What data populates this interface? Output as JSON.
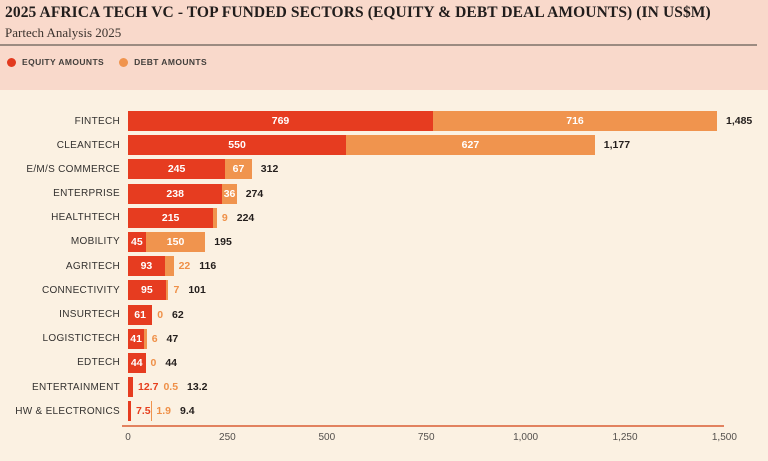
{
  "header": {
    "title": "2025 AFRICA TECH VC - TOP FUNDED SECTORS (EQUITY & DEBT DEAL AMOUNTS) (IN US$M)",
    "subtitle": "Partech Analysis 2025"
  },
  "legend": {
    "items": [
      {
        "label": "EQUITY AMOUNTS",
        "color": "#e23a1f"
      },
      {
        "label": "DEBT AMOUNTS",
        "color": "#f0944e"
      }
    ]
  },
  "colors": {
    "header_background": "#f9d9cb",
    "panel_background": "#fbf1e2",
    "equity_bar": "#e63c20",
    "debt_bar": "#f0944e",
    "equity_outside_text": "#e6401f",
    "debt_outside_text": "#ef9048",
    "total_text": "#241f1d",
    "axis_line": "#e2825f"
  },
  "chart_data": {
    "type": "bar",
    "orientation": "horizontal",
    "stacked": true,
    "title": "2025 AFRICA TECH VC - TOP FUNDED SECTORS (EQUITY & DEBT DEAL AMOUNTS) (IN US$M)",
    "subtitle": "Partech Analysis 2025",
    "series_names": [
      "EQUITY AMOUNTS",
      "DEBT AMOUNTS"
    ],
    "xlabel": "",
    "ylabel": "",
    "x_range": [
      0,
      1500
    ],
    "x_ticks": [
      "0",
      "250",
      "500",
      "750",
      "1,000",
      "1,250",
      "1,500"
    ],
    "grid": false,
    "legend_position": "top-left",
    "rows": [
      {
        "sector": "FINTECH",
        "equity": 769,
        "debt": 716,
        "equity_label": "769",
        "debt_label": "716",
        "total_label": "1,485"
      },
      {
        "sector": "CLEANTECH",
        "equity": 550,
        "debt": 627,
        "equity_label": "550",
        "debt_label": "627",
        "total_label": "1,177"
      },
      {
        "sector": "E/M/S COMMERCE",
        "equity": 245,
        "debt": 67,
        "equity_label": "245",
        "debt_label": "67",
        "total_label": "312"
      },
      {
        "sector": "ENTERPRISE",
        "equity": 238,
        "debt": 36,
        "equity_label": "238",
        "debt_label": "36",
        "total_label": "274"
      },
      {
        "sector": "HEALTHTECH",
        "equity": 215,
        "debt": 9,
        "equity_label": "215",
        "debt_label": "9",
        "total_label": "224"
      },
      {
        "sector": "MOBILITY",
        "equity": 45,
        "debt": 150,
        "equity_label": "45",
        "debt_label": "150",
        "total_label": "195"
      },
      {
        "sector": "AGRITECH",
        "equity": 93,
        "debt": 22,
        "equity_label": "93",
        "debt_label": "22",
        "total_label": "116"
      },
      {
        "sector": "CONNECTIVITY",
        "equity": 95,
        "debt": 7,
        "equity_label": "95",
        "debt_label": "7",
        "total_label": "101"
      },
      {
        "sector": "INSURTECH",
        "equity": 61,
        "debt": 0,
        "equity_label": "61",
        "debt_label": "0",
        "total_label": "62"
      },
      {
        "sector": "LOGISTICTECH",
        "equity": 41,
        "debt": 6,
        "equity_label": "41",
        "debt_label": "6",
        "total_label": "47"
      },
      {
        "sector": "EDTECH",
        "equity": 44,
        "debt": 0,
        "equity_label": "44",
        "debt_label": "0",
        "total_label": "44"
      },
      {
        "sector": "ENTERTAINMENT",
        "equity": 12.7,
        "debt": 0.5,
        "equity_label": "12.7",
        "debt_label": "0.5",
        "total_label": "13.2"
      },
      {
        "sector": "HW & ELECTRONICS",
        "equity": 7.5,
        "debt": 1.9,
        "equity_label": "7.5",
        "debt_label": "1.9",
        "total_label": "9.4"
      }
    ]
  }
}
